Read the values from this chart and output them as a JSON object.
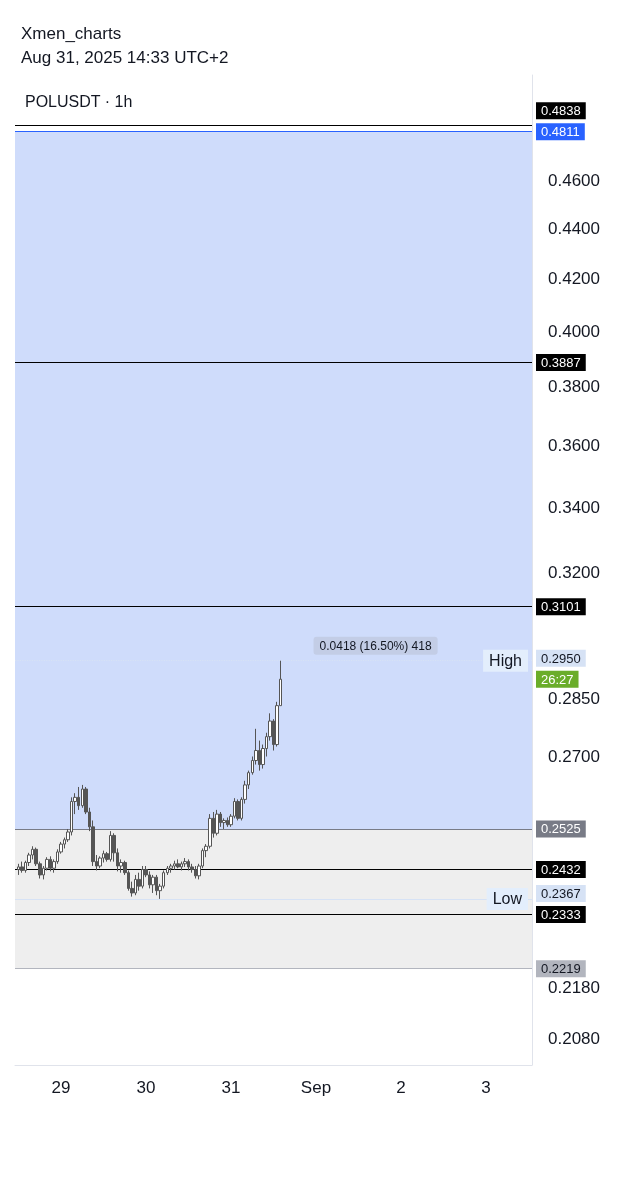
{
  "chart_data": {
    "type": "candlestick",
    "title": "POLUSDT · 1h",
    "subtitle": "Xmen_charts",
    "color": "#555555",
    "annotations": [
      "Aug 31, 2025 14:33 UTC+2",
      "0.0418 (16.50%) 418",
      "High",
      "Low",
      "26:27"
    ],
    "x": [
      "2025-08-28T12:00",
      "2025-08-28T13:00",
      "2025-08-28T14:00",
      "2025-08-28T15:00",
      "2025-08-28T16:00",
      "2025-08-28T17:00",
      "2025-08-28T18:00",
      "2025-08-28T19:00",
      "2025-08-28T20:00",
      "2025-08-28T21:00",
      "2025-08-28T22:00",
      "2025-08-28T23:00",
      "2025-08-29T00:00",
      "2025-08-29T01:00",
      "2025-08-29T02:00",
      "2025-08-29T03:00",
      "2025-08-29T04:00",
      "2025-08-29T05:00",
      "2025-08-29T06:00",
      "2025-08-29T07:00",
      "2025-08-29T08:00",
      "2025-08-29T09:00",
      "2025-08-29T10:00",
      "2025-08-29T11:00",
      "2025-08-29T12:00",
      "2025-08-29T13:00",
      "2025-08-29T14:00",
      "2025-08-29T15:00",
      "2025-08-29T16:00",
      "2025-08-29T17:00",
      "2025-08-29T18:00",
      "2025-08-29T19:00",
      "2025-08-29T20:00",
      "2025-08-29T21:00",
      "2025-08-29T22:00",
      "2025-08-29T23:00",
      "2025-08-30T00:00",
      "2025-08-30T01:00",
      "2025-08-30T02:00",
      "2025-08-30T03:00",
      "2025-08-30T04:00",
      "2025-08-30T05:00",
      "2025-08-30T06:00",
      "2025-08-30T07:00",
      "2025-08-30T08:00",
      "2025-08-30T09:00",
      "2025-08-30T10:00",
      "2025-08-30T11:00",
      "2025-08-30T12:00",
      "2025-08-30T13:00",
      "2025-08-30T14:00",
      "2025-08-30T15:00",
      "2025-08-30T16:00",
      "2025-08-30T17:00",
      "2025-08-30T18:00",
      "2025-08-30T19:00",
      "2025-08-30T20:00",
      "2025-08-30T21:00",
      "2025-08-30T22:00",
      "2025-08-30T23:00",
      "2025-08-31T00:00",
      "2025-08-31T01:00",
      "2025-08-31T02:00",
      "2025-08-31T03:00",
      "2025-08-31T04:00",
      "2025-08-31T05:00",
      "2025-08-31T06:00",
      "2025-08-31T07:00",
      "2025-08-31T08:00",
      "2025-08-31T09:00",
      "2025-08-31T10:00",
      "2025-08-31T11:00",
      "2025-08-31T12:00",
      "2025-08-31T13:00",
      "2025-08-31T14:00"
    ],
    "ohlc": [
      [
        0.2432,
        0.2445,
        0.242,
        0.2438
      ],
      [
        0.2438,
        0.245,
        0.2425,
        0.243
      ],
      [
        0.243,
        0.2452,
        0.2425,
        0.2448
      ],
      [
        0.2448,
        0.247,
        0.244,
        0.2465
      ],
      [
        0.2465,
        0.2485,
        0.2455,
        0.2478
      ],
      [
        0.2478,
        0.2482,
        0.244,
        0.2445
      ],
      [
        0.2445,
        0.245,
        0.2412,
        0.242
      ],
      [
        0.242,
        0.244,
        0.241,
        0.2435
      ],
      [
        0.2435,
        0.246,
        0.243,
        0.2455
      ],
      [
        0.2455,
        0.2462,
        0.2428,
        0.2435
      ],
      [
        0.2435,
        0.2455,
        0.2425,
        0.245
      ],
      [
        0.245,
        0.2478,
        0.2445,
        0.2472
      ],
      [
        0.2472,
        0.2495,
        0.2468,
        0.249
      ],
      [
        0.249,
        0.2505,
        0.248,
        0.25
      ],
      [
        0.25,
        0.2525,
        0.2495,
        0.2518
      ],
      [
        0.2518,
        0.26,
        0.251,
        0.259
      ],
      [
        0.259,
        0.261,
        0.256,
        0.26
      ],
      [
        0.26,
        0.2625,
        0.257,
        0.258
      ],
      [
        0.258,
        0.263,
        0.2575,
        0.262
      ],
      [
        0.262,
        0.2625,
        0.256,
        0.2565
      ],
      [
        0.2565,
        0.2575,
        0.252,
        0.253
      ],
      [
        0.253,
        0.2545,
        0.244,
        0.245
      ],
      [
        0.245,
        0.2465,
        0.243,
        0.244
      ],
      [
        0.244,
        0.2462,
        0.2435,
        0.2458
      ],
      [
        0.2458,
        0.2475,
        0.2448,
        0.2468
      ],
      [
        0.2468,
        0.2472,
        0.245,
        0.2455
      ],
      [
        0.2455,
        0.252,
        0.245,
        0.251
      ],
      [
        0.251,
        0.2515,
        0.245,
        0.247
      ],
      [
        0.247,
        0.248,
        0.2428,
        0.244
      ],
      [
        0.244,
        0.2455,
        0.2425,
        0.2448
      ],
      [
        0.2448,
        0.2452,
        0.242,
        0.2425
      ],
      [
        0.2425,
        0.243,
        0.2385,
        0.239
      ],
      [
        0.239,
        0.2405,
        0.2372,
        0.238
      ],
      [
        0.238,
        0.242,
        0.2375,
        0.241
      ],
      [
        0.241,
        0.2425,
        0.2385,
        0.2395
      ],
      [
        0.2395,
        0.244,
        0.239,
        0.2432
      ],
      [
        0.2432,
        0.244,
        0.2415,
        0.242
      ],
      [
        0.242,
        0.2428,
        0.239,
        0.2398
      ],
      [
        0.2398,
        0.242,
        0.238,
        0.2415
      ],
      [
        0.2415,
        0.242,
        0.2375,
        0.2385
      ],
      [
        0.2385,
        0.24,
        0.2367,
        0.2395
      ],
      [
        0.2395,
        0.243,
        0.239,
        0.2425
      ],
      [
        0.2425,
        0.244,
        0.242,
        0.2435
      ],
      [
        0.2435,
        0.2445,
        0.2425,
        0.244
      ],
      [
        0.244,
        0.2452,
        0.2432,
        0.2445
      ],
      [
        0.2445,
        0.2455,
        0.2435,
        0.2438
      ],
      [
        0.2438,
        0.245,
        0.243,
        0.2445
      ],
      [
        0.2445,
        0.2458,
        0.2438,
        0.245
      ],
      [
        0.245,
        0.2455,
        0.243,
        0.2438
      ],
      [
        0.2438,
        0.2445,
        0.2425,
        0.2432
      ],
      [
        0.2432,
        0.244,
        0.2412,
        0.2418
      ],
      [
        0.2418,
        0.2445,
        0.241,
        0.244
      ],
      [
        0.244,
        0.248,
        0.2435,
        0.2475
      ],
      [
        0.2475,
        0.249,
        0.246,
        0.2485
      ],
      [
        0.2485,
        0.256,
        0.248,
        0.255
      ],
      [
        0.255,
        0.2565,
        0.2505,
        0.2515
      ],
      [
        0.2515,
        0.257,
        0.251,
        0.256
      ],
      [
        0.256,
        0.2565,
        0.253,
        0.254
      ],
      [
        0.254,
        0.255,
        0.2525,
        0.2545
      ],
      [
        0.2545,
        0.2552,
        0.253,
        0.2535
      ],
      [
        0.2535,
        0.256,
        0.253,
        0.2555
      ],
      [
        0.2555,
        0.2598,
        0.255,
        0.259
      ],
      [
        0.259,
        0.2595,
        0.2545,
        0.255
      ],
      [
        0.255,
        0.26,
        0.2545,
        0.2595
      ],
      [
        0.2595,
        0.264,
        0.2585,
        0.263
      ],
      [
        0.263,
        0.2665,
        0.262,
        0.266
      ],
      [
        0.266,
        0.27,
        0.2655,
        0.269
      ],
      [
        0.269,
        0.277,
        0.268,
        0.2715
      ],
      [
        0.2715,
        0.274,
        0.2665,
        0.268
      ],
      [
        0.268,
        0.273,
        0.267,
        0.272
      ],
      [
        0.272,
        0.276,
        0.27,
        0.275
      ],
      [
        0.275,
        0.281,
        0.274,
        0.279
      ],
      [
        0.279,
        0.2795,
        0.2715,
        0.273
      ],
      [
        0.273,
        0.284,
        0.2725,
        0.283
      ],
      [
        0.283,
        0.295,
        0.283,
        0.29
      ]
    ],
    "log": true,
    "xlim": [
      "2025-08-28T11:00",
      "2025-09-03T13:00"
    ],
    "xticks": [
      {
        "value": "2025-08-29",
        "label": "29"
      },
      {
        "value": "2025-08-30",
        "label": "30"
      },
      {
        "value": "2025-08-31",
        "label": "31"
      },
      {
        "value": "2025-09-01",
        "label": "Sep"
      },
      {
        "value": "2025-09-02",
        "label": "2"
      },
      {
        "value": "2025-09-03",
        "label": "3"
      }
    ],
    "ylim": [
      0.203,
      0.507
    ],
    "yticks": [
      {
        "value": 0.46,
        "label": "0.4600"
      },
      {
        "value": 0.44,
        "label": "0.4400"
      },
      {
        "value": 0.42,
        "label": "0.4200"
      },
      {
        "value": 0.4,
        "label": "0.4000"
      },
      {
        "value": 0.38,
        "label": "0.3800"
      },
      {
        "value": 0.36,
        "label": "0.3600"
      },
      {
        "value": 0.34,
        "label": "0.3400"
      },
      {
        "value": 0.32,
        "label": "0.3200"
      },
      {
        "value": 0.285,
        "label": "0.2850"
      },
      {
        "value": 0.27,
        "label": "0.2700"
      },
      {
        "value": 0.218,
        "label": "0.2180"
      },
      {
        "value": 0.208,
        "label": "0.2080"
      }
    ],
    "bands": [
      {
        "axis": "y",
        "from": 0.2525,
        "to": 0.4811,
        "color": "#cfdcfb"
      },
      {
        "axis": "y",
        "from": 0.2219,
        "to": 0.2525,
        "color": "#eeeeee"
      }
    ],
    "ref_lines": [
      {
        "axis": "y",
        "value": 0.4838,
        "label": "0.4838",
        "color": "#000000"
      },
      {
        "axis": "y",
        "value": 0.4811,
        "label": "0.4811",
        "color": "#2962ff"
      },
      {
        "axis": "y",
        "value": 0.3887,
        "label": "0.3887",
        "color": "#000000"
      },
      {
        "axis": "y",
        "value": 0.3101,
        "label": "0.3101",
        "color": "#000000"
      },
      {
        "axis": "y",
        "value": 0.295,
        "label": "0.2950",
        "color": "#d6e2f5",
        "line_style": "dotted"
      },
      {
        "axis": "y",
        "value": 0.2525,
        "label": "0.2525",
        "color": "#787b86"
      },
      {
        "axis": "y",
        "value": 0.2432,
        "label": "0.2432",
        "color": "#000000"
      },
      {
        "axis": "y",
        "value": 0.2367,
        "label": "0.2367",
        "color": "#d6e2f5"
      },
      {
        "axis": "y",
        "value": 0.2333,
        "label": "0.2333",
        "color": "#000000"
      },
      {
        "axis": "y",
        "value": 0.2219,
        "label": "0.2219",
        "color": "#b2b5be"
      }
    ]
  }
}
